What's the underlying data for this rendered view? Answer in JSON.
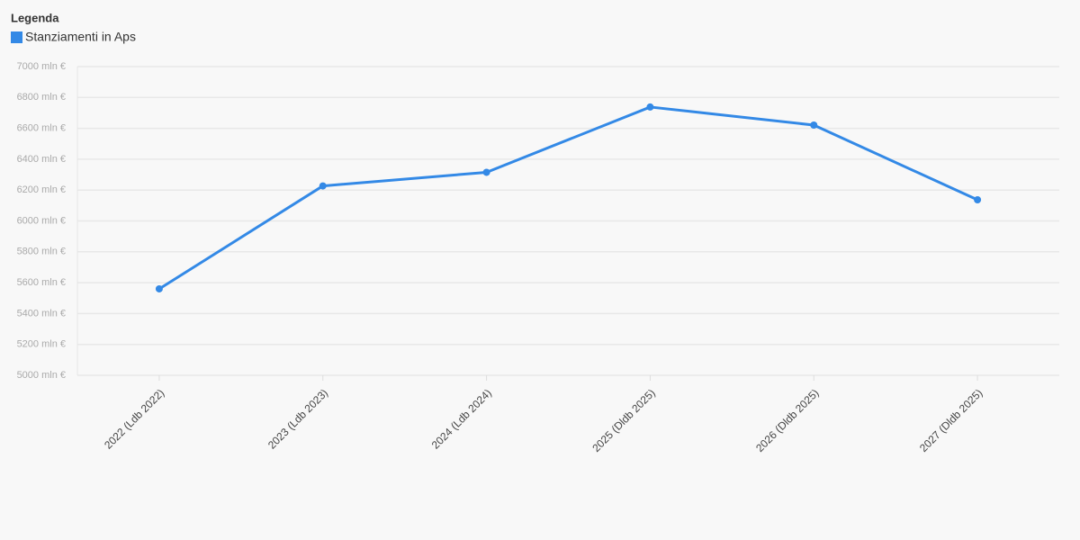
{
  "chart_data": {
    "type": "line",
    "legend_title": "Legenda",
    "categories": [
      "2022 (Ldb 2022)",
      "2023 (Ldb 2023)",
      "2024 (Ldb 2024)",
      "2025 (Dldb 2025)",
      "2026 (Dldb 2025)",
      "2027 (Dldb 2025)"
    ],
    "series": [
      {
        "name": "Stanziamenti in Aps",
        "color": "#3389e6",
        "values": [
          5560,
          6227,
          6315,
          6738,
          6621,
          6137
        ]
      }
    ],
    "ylim": [
      5000,
      7000
    ],
    "yticks": [
      {
        "value": 5000,
        "label": "5000 mln €"
      },
      {
        "value": 5200,
        "label": "5200 mln €"
      },
      {
        "value": 5400,
        "label": "5400 mln €"
      },
      {
        "value": 5600,
        "label": "5600 mln €"
      },
      {
        "value": 5800,
        "label": "5800 mln €"
      },
      {
        "value": 6000,
        "label": "6000 mln €"
      },
      {
        "value": 6200,
        "label": "6200 mln €"
      },
      {
        "value": 6400,
        "label": "6400 mln €"
      },
      {
        "value": 6600,
        "label": "6600 mln €"
      },
      {
        "value": 6800,
        "label": "6800 mln €"
      },
      {
        "value": 7000,
        "label": "7000 mln €"
      }
    ],
    "grid": true
  }
}
